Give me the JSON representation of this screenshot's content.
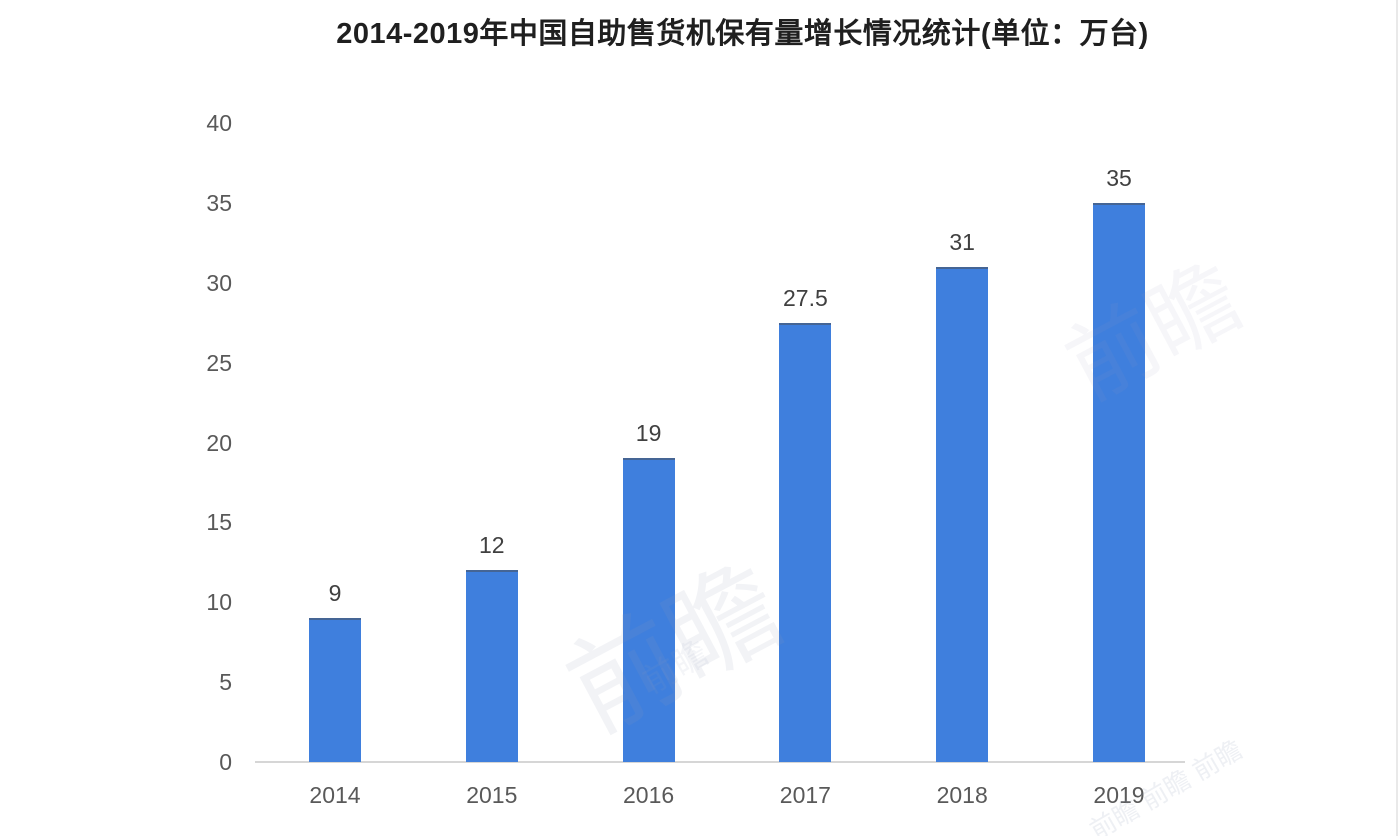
{
  "chart_data": {
    "type": "bar",
    "title": "2014-2019年中国自助售货机保有量增长情况统计(单位：万台)",
    "categories": [
      "2014",
      "2015",
      "2016",
      "2017",
      "2018",
      "2019"
    ],
    "values": [
      9,
      12,
      19,
      27.5,
      31,
      35
    ],
    "value_labels": [
      "9",
      "12",
      "19",
      "27.5",
      "31",
      "35"
    ],
    "y_ticks": [
      0,
      5,
      10,
      15,
      20,
      25,
      30,
      35,
      40
    ],
    "ylim": [
      0,
      40
    ],
    "xlabel": "",
    "ylabel": "",
    "grid": false,
    "legend_position": "none",
    "bar_color": "#3f7fdd",
    "axis_line_color": "#d6d6d6",
    "tick_label_color": "#595959",
    "value_label_color": "#404040",
    "title_color": "#1f1f1f"
  },
  "watermark": {
    "short": "前瞻",
    "repeat": "前瞻 前瞻 前瞻"
  }
}
